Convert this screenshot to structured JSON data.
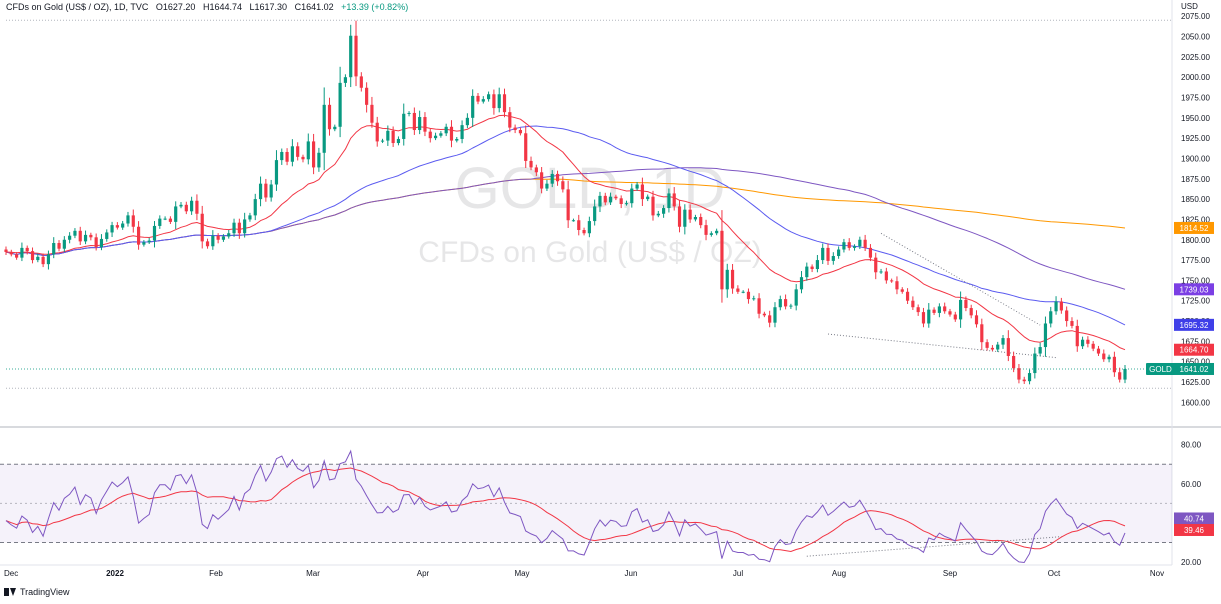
{
  "header": {
    "symbol": "CFDs on Gold (US$ / OZ), 1D, TVC",
    "open": "O1627.20",
    "high": "H1644.74",
    "low": "L1617.30",
    "close": "C1641.02",
    "change": "+13.39 (+0.82%)"
  },
  "watermark": {
    "ticker": "GOLD, 1D",
    "name": "CFDs on Gold (US$ / OZ)"
  },
  "branding": {
    "label": "TradingView"
  },
  "colors": {
    "up": "#089981",
    "down": "#F23645",
    "ema20": "#F23645",
    "sma50": "#5B5BF0",
    "sma100": "#7E57C2",
    "sma200": "#FF9800",
    "rsi": "#7E57C2",
    "rsi_ma": "#F23645"
  },
  "chart_data": [
    {
      "type": "candlestick",
      "title": "CFDs on Gold (US$ / OZ), 1D, TVC",
      "currency": "USD",
      "x_ticks": [
        "Dec",
        "2022",
        "Feb",
        "Mar",
        "Apr",
        "May",
        "Jun",
        "Jul",
        "Aug",
        "Sep",
        "Oct",
        "Nov"
      ],
      "y_ticks": [
        1600,
        1625,
        1650,
        1675,
        1700,
        1725,
        1750,
        1775,
        1800,
        1825,
        1850,
        1875,
        1900,
        1925,
        1950,
        1975,
        2000,
        2025,
        2050,
        2075
      ],
      "ylim": [
        1595,
        2085
      ],
      "ohlc_daily_closes": [
        1785,
        1782,
        1778,
        1790,
        1786,
        1775,
        1779,
        1770,
        1782,
        1796,
        1789,
        1800,
        1805,
        1811,
        1798,
        1806,
        1803,
        1791,
        1801,
        1809,
        1818,
        1815,
        1820,
        1830,
        1816,
        1794,
        1797,
        1799,
        1817,
        1826,
        1826,
        1822,
        1841,
        1843,
        1835,
        1848,
        1832,
        1798,
        1792,
        1805,
        1800,
        1804,
        1808,
        1821,
        1808,
        1825,
        1830,
        1850,
        1869,
        1852,
        1868,
        1898,
        1908,
        1896,
        1915,
        1902,
        1899,
        1921,
        1889,
        1907,
        1966,
        1936,
        1939,
        1993,
        2000,
        2051,
        2001,
        1987,
        1966,
        1944,
        1921,
        1922,
        1934,
        1919,
        1924,
        1955,
        1956,
        1935,
        1951,
        1933,
        1925,
        1928,
        1931,
        1939,
        1922,
        1924,
        1941,
        1950,
        1977,
        1970,
        1973,
        1979,
        1962,
        1979,
        1957,
        1938,
        1935,
        1931,
        1897,
        1889,
        1883,
        1863,
        1869,
        1881,
        1872,
        1862,
        1824,
        1824,
        1812,
        1808,
        1823,
        1841,
        1854,
        1846,
        1853,
        1851,
        1844,
        1845,
        1863,
        1868,
        1850,
        1853,
        1830,
        1832,
        1839,
        1857,
        1841,
        1816,
        1837,
        1825,
        1828,
        1818,
        1806,
        1808,
        1811,
        1739,
        1763,
        1740,
        1736,
        1736,
        1727,
        1728,
        1709,
        1707,
        1698,
        1717,
        1727,
        1718,
        1719,
        1739,
        1754,
        1767,
        1764,
        1775,
        1790,
        1774,
        1780,
        1788,
        1797,
        1790,
        1792,
        1800,
        1790,
        1778,
        1760,
        1761,
        1750,
        1749,
        1739,
        1736,
        1725,
        1717,
        1711,
        1697,
        1714,
        1710,
        1718,
        1712,
        1708,
        1702,
        1726,
        1716,
        1707,
        1696,
        1674,
        1667,
        1665,
        1671,
        1679,
        1657,
        1642,
        1628,
        1626,
        1636,
        1660,
        1668,
        1697,
        1712,
        1724,
        1713,
        1700,
        1694,
        1669,
        1677,
        1672,
        1666,
        1660,
        1653,
        1656,
        1637,
        1628,
        1641
      ],
      "last_price": 1641.02,
      "price_labels": [
        {
          "label": "GOLD",
          "value": 1641.02,
          "text": "1641.02",
          "color": "#089981"
        },
        {
          "label": "",
          "value": 1664.7,
          "text": "1664.70",
          "color": "#F23645"
        },
        {
          "label": "",
          "value": 1695.32,
          "text": "1695.32",
          "color": "#3F3FE8"
        },
        {
          "label": "",
          "value": 1739.03,
          "text": "1739.03",
          "color": "#7B3FE4"
        },
        {
          "label": "",
          "value": 1814.52,
          "text": "1814.52",
          "color": "#FF9800"
        }
      ],
      "moving_averages": [
        {
          "type": "EMA",
          "period": 20,
          "last": 1664.7
        },
        {
          "type": "SMA",
          "period": 50,
          "last": 1695.32
        },
        {
          "type": "SMA",
          "period": 100,
          "last": 1739.03
        },
        {
          "type": "SMA",
          "period": 200,
          "last": 1814.52
        }
      ],
      "grid": false
    },
    {
      "type": "line",
      "ylabel": "",
      "y_ticks": [
        20,
        40,
        60,
        80
      ],
      "ylim": [
        17,
        86
      ],
      "band": [
        30,
        70
      ],
      "series": [
        {
          "values": [
            41.2,
            39.0,
            37.3,
            43.5,
            41.4,
            35.1,
            38.2,
            33.2,
            42.2,
            50.4,
            46.5,
            52.6,
            54.6,
            58.3,
            49.4,
            54.4,
            52.7,
            44.8,
            51.8,
            56.3,
            60.9,
            58.5,
            60.6,
            63.5,
            53.4,
            39.9,
            42.3,
            44.3,
            55.4,
            59.5,
            59.5,
            56.8,
            64.0,
            64.7,
            60.1,
            64.6,
            55.5,
            39.3,
            37.1,
            44.2,
            41.9,
            44.3,
            46.8,
            53.5,
            46.6,
            55.0,
            57.3,
            64.4,
            69.3,
            61.4,
            66.0,
            72.8,
            74.2,
            68.4,
            72.3,
            67.8,
            66.4,
            69.4,
            58.0,
            61.7,
            71.7,
            62.0,
            62.6,
            70.3,
            71.2,
            76.7,
            62.3,
            58.8,
            53.9,
            49.3,
            45.1,
            45.3,
            48.5,
            45.5,
            46.9,
            54.3,
            54.5,
            49.5,
            53.1,
            48.5,
            46.6,
            47.6,
            48.6,
            50.8,
            45.6,
            46.2,
            51.4,
            53.8,
            60.0,
            57.5,
            58.0,
            59.3,
            53.4,
            57.9,
            50.6,
            45.1,
            44.3,
            43.3,
            35.9,
            34.4,
            33.3,
            29.9,
            32.1,
            36.1,
            33.9,
            31.8,
            25.7,
            25.7,
            24.2,
            23.6,
            30.0,
            37.0,
            41.5,
            38.4,
            41.4,
            40.8,
            38.2,
            38.6,
            45.7,
            47.3,
            40.4,
            41.6,
            35.6,
            36.4,
            39.0,
            45.7,
            40.3,
            33.4,
            41.6,
            38.4,
            39.5,
            36.8,
            33.8,
            34.6,
            35.5,
            21.8,
            30.6,
            25.6,
            24.9,
            24.9,
            23.5,
            23.9,
            21.4,
            21.2,
            20.2,
            27.9,
            31.5,
            29.0,
            29.4,
            36.1,
            40.5,
            43.7,
            42.8,
            45.6,
            49.1,
            43.9,
            45.9,
            48.4,
            50.7,
            48.0,
            48.6,
            51.6,
            47.1,
            42.3,
            36.6,
            37.1,
            34.2,
            34.1,
            31.8,
            31.2,
            29.0,
            27.7,
            26.9,
            25.0,
            32.3,
            31.4,
            34.8,
            33.1,
            32.1,
            30.7,
            40.1,
            36.6,
            33.6,
            30.5,
            25.6,
            24.2,
            23.8,
            26.3,
            29.6,
            24.9,
            22.1,
            20.1,
            19.8,
            24.3,
            34.1,
            37.0,
            46.0,
            49.7,
            52.4,
            48.4,
            44.5,
            42.8,
            37.2,
            39.8,
            38.5,
            37.0,
            35.5,
            33.8,
            34.9,
            30.4,
            28.6,
            34.9
          ]
        },
        {
          "values": []
        }
      ],
      "last_labels": [
        {
          "value": 40.74,
          "text": "40.74",
          "color": "#7E57C2"
        },
        {
          "value": 39.46,
          "text": "39.46",
          "color": "#F23645"
        }
      ],
      "grid": false
    }
  ]
}
